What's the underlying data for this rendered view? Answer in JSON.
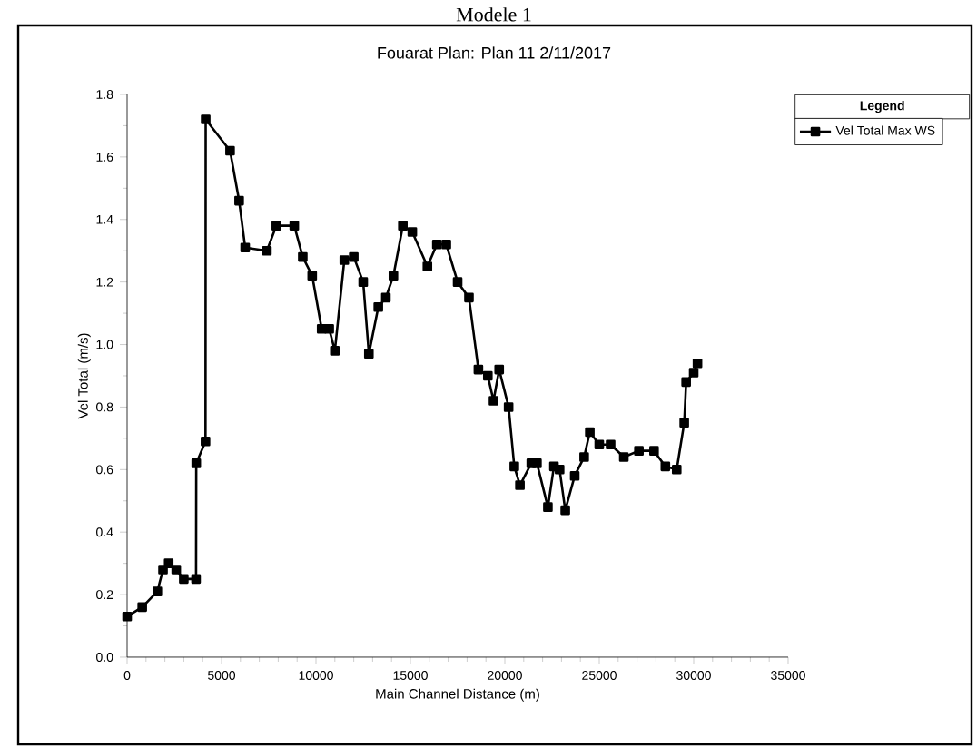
{
  "chart_data": {
    "type": "line",
    "title": "Modele 1",
    "subtitle": "Fouarat    Plan: Plan 11    2/11/2017",
    "xlabel": "Main Channel Distance (m)",
    "ylabel": "Vel Total (m/s)",
    "legend_title": "Legend",
    "xlim": [
      0,
      35000
    ],
    "ylim": [
      0,
      1.8
    ],
    "xticks": [
      0,
      5000,
      10000,
      15000,
      20000,
      25000,
      30000,
      35000
    ],
    "yticks": [
      {
        "value": 0,
        "label": "0.0"
      },
      {
        "value": 0.2,
        "label": "0.2"
      },
      {
        "value": 0.4,
        "label": "0.4"
      },
      {
        "value": 0.6,
        "label": "0.6"
      },
      {
        "value": 0.8,
        "label": "0.8"
      },
      {
        "value": 1.0,
        "label": "1.0"
      },
      {
        "value": 1.2,
        "label": "1.2"
      },
      {
        "value": 1.4,
        "label": "1.4"
      },
      {
        "value": 1.6,
        "label": "1.6"
      },
      {
        "value": 1.8,
        "label": "1.8"
      }
    ],
    "grid": false,
    "legend": "top right",
    "marker": "square",
    "line_style": "solid",
    "series": [
      {
        "name": "Vel Total Max WS",
        "color": "#000000",
        "x": [
          0,
          800,
          1600,
          1900,
          2200,
          2600,
          3000,
          3650,
          3660,
          4150,
          4160,
          5450,
          5930,
          6250,
          7400,
          7900,
          8850,
          9300,
          9800,
          10300,
          10700,
          11000,
          11500,
          12000,
          12500,
          12800,
          13300,
          13700,
          14100,
          14600,
          15100,
          15900,
          16400,
          16900,
          17500,
          18100,
          18600,
          19100,
          19400,
          19700,
          20200,
          20500,
          20800,
          21400,
          21700,
          22280,
          22600,
          22900,
          23200,
          23700,
          24200,
          24500,
          25000,
          25600,
          26300,
          27100,
          27900,
          28500,
          29100,
          29500,
          29600,
          30000,
          30200
        ],
        "values": [
          0.13,
          0.16,
          0.21,
          0.28,
          0.3,
          0.28,
          0.25,
          0.25,
          0.62,
          0.69,
          1.72,
          1.62,
          1.46,
          1.31,
          1.3,
          1.38,
          1.38,
          1.28,
          1.22,
          1.05,
          1.05,
          0.98,
          1.27,
          1.28,
          1.2,
          0.97,
          1.12,
          1.15,
          1.22,
          1.38,
          1.36,
          1.25,
          1.32,
          1.32,
          1.2,
          1.15,
          0.92,
          0.9,
          0.82,
          0.92,
          0.8,
          0.61,
          0.55,
          0.62,
          0.62,
          0.48,
          0.61,
          0.6,
          0.47,
          0.58,
          0.64,
          0.72,
          0.68,
          0.68,
          0.64,
          0.66,
          0.66,
          0.61,
          0.6,
          0.75,
          0.88,
          0.91,
          0.94
        ]
      }
    ]
  }
}
